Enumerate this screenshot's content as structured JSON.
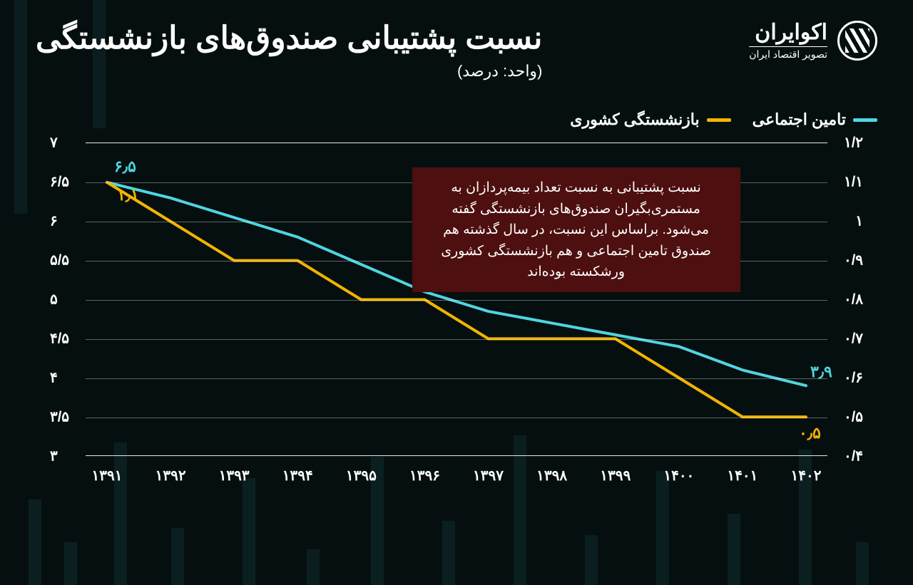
{
  "header": {
    "title": "نسبت پشتیبانی صندوق‌های بازنشستگی",
    "subtitle": "(واحد: درصد)",
    "logo_main": "اکوایران",
    "logo_sub": "تصویر اقتصاد ایران"
  },
  "legend": {
    "series1": {
      "label": "تامین اجتماعی",
      "color": "#4fd5e0"
    },
    "series2": {
      "label": "بازنشستگی کشوری",
      "color": "#f2b400"
    }
  },
  "chart": {
    "type": "line",
    "background_color": "#060f0f",
    "grid_color": "rgba(255,255,255,0.35)",
    "axis_color": "rgba(255,255,255,0.9)",
    "line_width": 4,
    "x_labels": [
      "۱۳۹۱",
      "۱۳۹۲",
      "۱۳۹۳",
      "۱۳۹۴",
      "۱۳۹۵",
      "۱۳۹۶",
      "۱۳۹۷",
      "۱۳۹۸",
      "۱۳۹۹",
      "۱۴۰۰",
      "۱۴۰۱",
      "۱۴۰۲"
    ],
    "left_axis": {
      "min": 3,
      "max": 7,
      "ticks": [
        3,
        3.5,
        4,
        4.5,
        5,
        5.5,
        6,
        6.5,
        7
      ],
      "tick_labels": [
        "۳",
        "۳/۵",
        "۴",
        "۴/۵",
        "۵",
        "۵/۵",
        "۶",
        "۶/۵",
        "۷"
      ]
    },
    "right_axis": {
      "min": 0.4,
      "max": 1.2,
      "ticks": [
        0.4,
        0.5,
        0.6,
        0.7,
        0.8,
        0.9,
        1.0,
        1.1,
        1.2
      ],
      "tick_labels": [
        "۰/۴",
        "۰/۵",
        "۰/۶",
        "۰/۷",
        "۰/۸",
        "۰/۹",
        "۱",
        "۱/۱",
        "۱/۲"
      ]
    },
    "series": {
      "tamin": {
        "color": "#4fd5e0",
        "axis": "left",
        "values": [
          6.5,
          6.3,
          6.05,
          5.8,
          5.45,
          5.1,
          4.85,
          4.7,
          4.55,
          4.4,
          4.1,
          3.9
        ]
      },
      "keshvari": {
        "color": "#f2b400",
        "axis": "right",
        "values": [
          1.1,
          1.0,
          0.9,
          0.9,
          0.8,
          0.8,
          0.7,
          0.7,
          0.7,
          0.6,
          0.5,
          0.5
        ]
      }
    },
    "annotations": {
      "a1": {
        "text": "۶٫۵",
        "color": "#4fd5e0"
      },
      "a2": {
        "text": "۱٫۱",
        "color": "#f2b400"
      },
      "a3": {
        "text": "۳٫۹",
        "color": "#4fd5e0"
      },
      "a4": {
        "text": "۰٫۵",
        "color": "#f2b400"
      }
    },
    "note": "نسبت پشتیبانی به نسبت تعداد بیمه‌پردازان به مستمری‌بگیران صندوق‌های بازنشستگی گفته می‌شود. براساس این نسبت، در سال گذشته هم صندوق تامین اجتماعی و هم بازنشستگی کشوری ورشکسته بوده‌اند",
    "label_fontsize": 20,
    "title_fontsize": 44
  }
}
